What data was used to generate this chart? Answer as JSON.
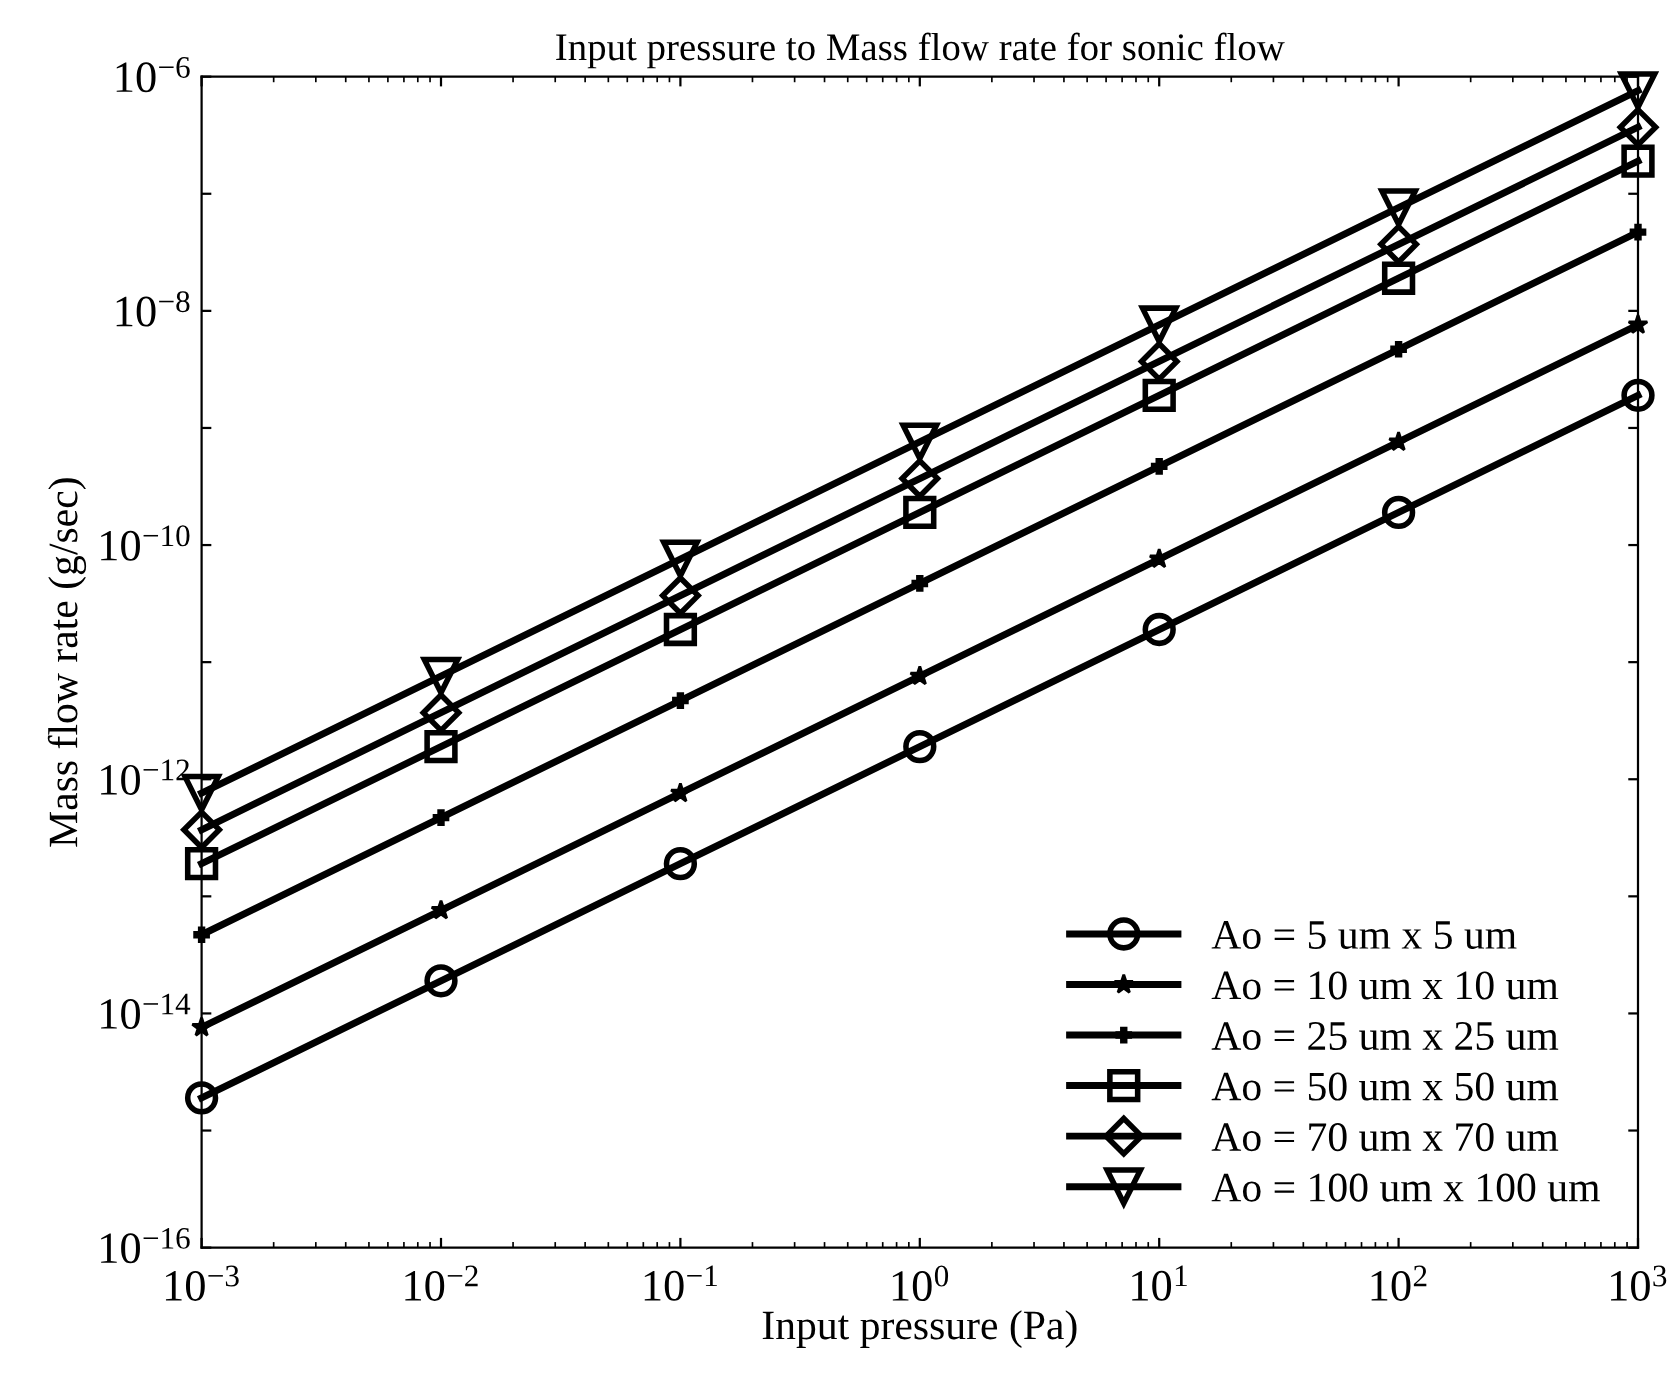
{
  "chart_data": {
    "type": "line",
    "title": "Input pressure to Mass flow rate for sonic flow",
    "xlabel": "Input pressure (Pa)",
    "ylabel": "Mass flow rate (g/sec)",
    "log": "xy",
    "x": [
      0.001,
      0.01,
      0.1,
      1,
      10,
      100,
      1000
    ],
    "xlim": [
      0.001,
      1000
    ],
    "xticks": [
      {
        "value": 0.001,
        "label": "10$^{−3}$"
      },
      {
        "value": 0.01,
        "label": "10$^{−2}$"
      },
      {
        "value": 0.1,
        "label": "10$^{−1}$"
      },
      {
        "value": 1,
        "label": "10$^{0}$"
      },
      {
        "value": 10,
        "label": "10$^{1}$"
      },
      {
        "value": 100,
        "label": "10$^{2}$"
      },
      {
        "value": 1000,
        "label": "10$^{3}$"
      }
    ],
    "ylim": [
      1e-16,
      1e-06
    ],
    "yticks": [
      {
        "value": 1e-16,
        "label": "10$^{−16}$"
      },
      {
        "value": 1e-15,
        "label": null
      },
      {
        "value": 1e-14,
        "label": "10$^{−14}$"
      },
      {
        "value": 1e-13,
        "label": null
      },
      {
        "value": 1e-12,
        "label": "10$^{−12}$"
      },
      {
        "value": 1e-11,
        "label": null
      },
      {
        "value": 1e-10,
        "label": "10$^{−10}$"
      },
      {
        "value": 1e-09,
        "label": null
      },
      {
        "value": 1e-08,
        "label": "10$^{−8}$"
      },
      {
        "value": 1e-07,
        "label": null
      },
      {
        "value": 1e-06,
        "label": "10$^{−6}$"
      }
    ],
    "grid": false,
    "legend": "bottom right",
    "line_style": "solid",
    "series": [
      {
        "name": "Ao = 5 um x 5 um",
        "color": "#000000",
        "marker": "circle",
        "values": [
          1.9e-15,
          1.9e-14,
          1.9e-13,
          1.9e-12,
          1.9e-11,
          1.9e-10,
          1.9e-09
        ]
      },
      {
        "name": "Ao = 10 um x 10 um",
        "color": "#000000",
        "marker": "star",
        "values": [
          7.6e-15,
          7.6e-14,
          7.6e-13,
          7.6e-12,
          7.6e-11,
          7.6e-10,
          7.6e-09
        ]
      },
      {
        "name": "Ao = 25 um x 25 um",
        "color": "#000000",
        "marker": "cross",
        "values": [
          4.7e-14,
          4.7e-13,
          4.7e-12,
          4.7e-11,
          4.7e-10,
          4.7e-09,
          4.7e-08
        ]
      },
      {
        "name": "Ao = 50 um x 50 um",
        "color": "#000000",
        "marker": "square",
        "values": [
          1.9e-13,
          1.9e-12,
          1.9e-11,
          1.9e-10,
          1.9e-09,
          1.9e-08,
          1.9e-07
        ]
      },
      {
        "name": "Ao = 70 um x 70 um",
        "color": "#000000",
        "marker": "diamond",
        "values": [
          3.7e-13,
          3.7e-12,
          3.7e-11,
          3.7e-10,
          3.7e-09,
          3.7e-08,
          3.7e-07
        ]
      },
      {
        "name": "Ao = 100 um x 100 um",
        "color": "#000000",
        "marker": "triangle",
        "values": [
          7.6e-13,
          7.6e-12,
          7.6e-11,
          7.6e-10,
          7.6e-09,
          7.6e-08,
          7.6e-07
        ]
      }
    ]
  }
}
